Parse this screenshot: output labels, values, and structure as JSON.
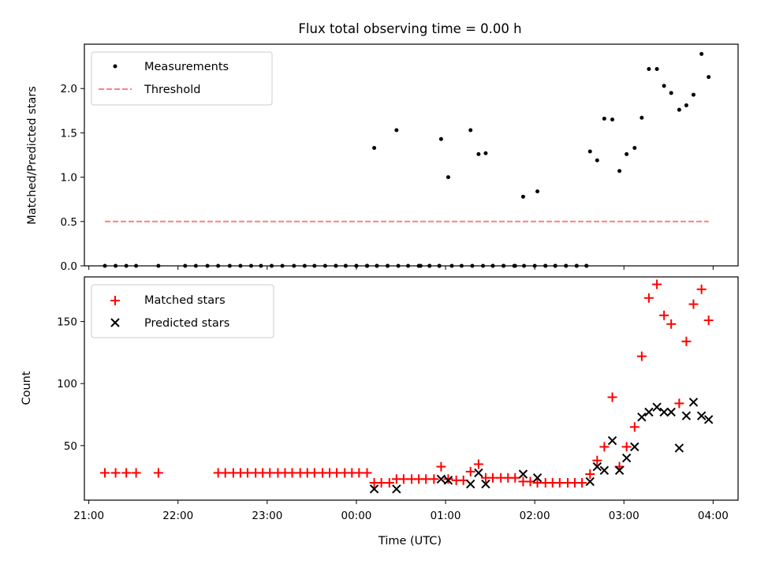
{
  "title": "Flux total observing time = 0.00 h",
  "colors": {
    "measurement": "#000000",
    "threshold": "#ff7f7f",
    "matched": "#ff0000",
    "predicted": "#000000",
    "axes": "#000000",
    "legend_border": "#cccccc"
  },
  "chart_data": [
    {
      "type": "scatter",
      "panel": "top",
      "title": "Flux total observing time = 0.00 h",
      "xlabel": "",
      "ylabel": "Matched/Predicted stars",
      "xlim": [
        20.95,
        4.28
      ],
      "ylim": [
        0.0,
        2.5
      ],
      "yticks": [
        0.0,
        0.5,
        1.0,
        1.5,
        2.0
      ],
      "ytick_labels": [
        "0.0",
        "0.5",
        "1.0",
        "1.5",
        "2.0"
      ],
      "legend_position": "upper left",
      "series": [
        {
          "name": "Measurements",
          "marker": "dot",
          "x": [
            "21:11",
            "21:18",
            "21:25",
            "21:32",
            "21:47",
            "22:27",
            "22:35",
            "22:42",
            "22:49",
            "22:56",
            "23:03",
            "23:10",
            "23:18",
            "23:25",
            "23:32",
            "23:39",
            "23:46",
            "23:53",
            "24:00",
            "24:07",
            "24:14",
            "24:21",
            "24:28",
            "24:35",
            "24:42",
            "24:49",
            "24:56",
            "25:04",
            "25:11",
            "25:18",
            "25:25",
            "25:32",
            "25:39",
            "25:46",
            "25:53",
            "26:00",
            "26:07",
            "26:14",
            "26:21",
            "26:28",
            "26:35"
          ],
          "x_hours": [
            21.18,
            21.3,
            21.42,
            21.53,
            21.78,
            22.45,
            22.58,
            22.7,
            22.82,
            22.93,
            23.05,
            23.17,
            23.3,
            23.42,
            23.53,
            23.65,
            23.77,
            23.88,
            24.0,
            24.12,
            24.23,
            24.35,
            24.47,
            24.58,
            24.7,
            24.82,
            24.93,
            25.07,
            25.18,
            25.3,
            25.42,
            25.53,
            25.65,
            25.77,
            25.88,
            26.0,
            26.12,
            26.23,
            26.35,
            26.47,
            26.58
          ],
          "zero_points_x_hours": [
            21.18,
            21.3,
            21.42,
            21.53,
            21.78,
            22.45,
            22.58,
            22.7,
            22.82,
            22.93,
            23.05,
            23.17,
            23.3,
            23.42,
            23.53,
            23.65,
            23.77,
            23.88,
            24.0,
            24.12,
            24.23,
            24.35,
            24.47,
            24.58,
            24.7,
            24.82,
            24.93,
            25.07,
            25.18,
            25.3,
            25.42,
            25.53,
            25.65,
            25.77,
            25.88,
            26.0,
            26.12,
            26.23,
            26.35,
            26.47,
            26.58,
            22.08,
            22.2,
            22.33,
            23.77,
            23.88,
            24.0,
            24.12,
            24.23,
            24.35,
            24.12,
            24.72,
            24.82,
            24.93,
            25.53,
            25.65,
            25.78,
            26.12,
            26.23,
            26.35,
            26.47,
            26.58
          ],
          "nonzero_points": [
            {
              "x_hours": 24.2,
              "y": 1.33
            },
            {
              "x_hours": 24.45,
              "y": 1.53
            },
            {
              "x_hours": 24.95,
              "y": 1.43
            },
            {
              "x_hours": 25.03,
              "y": 1.0
            },
            {
              "x_hours": 25.28,
              "y": 1.53
            },
            {
              "x_hours": 25.37,
              "y": 1.26
            },
            {
              "x_hours": 25.45,
              "y": 1.27
            },
            {
              "x_hours": 25.87,
              "y": 0.78
            },
            {
              "x_hours": 26.03,
              "y": 0.84
            },
            {
              "x_hours": 26.62,
              "y": 1.29
            },
            {
              "x_hours": 26.7,
              "y": 1.19
            },
            {
              "x_hours": 26.78,
              "y": 1.66
            },
            {
              "x_hours": 26.87,
              "y": 1.65
            },
            {
              "x_hours": 26.95,
              "y": 1.07
            },
            {
              "x_hours": 27.03,
              "y": 1.26
            },
            {
              "x_hours": 27.12,
              "y": 1.33
            },
            {
              "x_hours": 27.2,
              "y": 1.67
            },
            {
              "x_hours": 27.28,
              "y": 2.22
            },
            {
              "x_hours": 27.37,
              "y": 2.22
            },
            {
              "x_hours": 27.45,
              "y": 2.03
            },
            {
              "x_hours": 27.53,
              "y": 1.95
            },
            {
              "x_hours": 27.62,
              "y": 1.76
            },
            {
              "x_hours": 27.7,
              "y": 1.81
            },
            {
              "x_hours": 27.78,
              "y": 1.93
            },
            {
              "x_hours": 27.87,
              "y": 2.39
            },
            {
              "x_hours": 27.95,
              "y": 2.13
            }
          ]
        },
        {
          "name": "Threshold",
          "marker": "dashed-line",
          "x_hours": [
            21.18,
            27.95
          ],
          "y": [
            0.5,
            0.5
          ]
        }
      ]
    },
    {
      "type": "scatter",
      "panel": "bottom",
      "xlabel": "Time (UTC)",
      "ylabel": "Count",
      "xlim_hours": [
        20.95,
        28.28
      ],
      "ylim": [
        6,
        186
      ],
      "xticks_hours": [
        21,
        22,
        23,
        24,
        25,
        26,
        27,
        28
      ],
      "xtick_labels": [
        "21:00",
        "22:00",
        "23:00",
        "00:00",
        "01:00",
        "02:00",
        "03:00",
        "04:00"
      ],
      "yticks": [
        50,
        100,
        150
      ],
      "ytick_labels": [
        "50",
        "100",
        "150"
      ],
      "legend_position": "upper left",
      "series": [
        {
          "name": "Matched stars",
          "marker": "plus",
          "points": [
            [
              21.18,
              28
            ],
            [
              21.3,
              28
            ],
            [
              21.42,
              28
            ],
            [
              21.53,
              28
            ],
            [
              21.78,
              28
            ],
            [
              22.45,
              28
            ],
            [
              22.53,
              28
            ],
            [
              22.62,
              28
            ],
            [
              22.7,
              28
            ],
            [
              22.78,
              28
            ],
            [
              22.87,
              28
            ],
            [
              22.95,
              28
            ],
            [
              23.03,
              28
            ],
            [
              23.12,
              28
            ],
            [
              23.2,
              28
            ],
            [
              23.28,
              28
            ],
            [
              23.37,
              28
            ],
            [
              23.45,
              28
            ],
            [
              23.53,
              28
            ],
            [
              23.62,
              28
            ],
            [
              23.7,
              28
            ],
            [
              23.78,
              28
            ],
            [
              23.87,
              28
            ],
            [
              23.95,
              28
            ],
            [
              24.03,
              28
            ],
            [
              24.12,
              28
            ],
            [
              24.2,
              20
            ],
            [
              24.28,
              20
            ],
            [
              24.37,
              20
            ],
            [
              24.45,
              23
            ],
            [
              24.53,
              23
            ],
            [
              24.62,
              23
            ],
            [
              24.7,
              23
            ],
            [
              24.78,
              23
            ],
            [
              24.87,
              23
            ],
            [
              24.95,
              33
            ],
            [
              25.03,
              23
            ],
            [
              25.12,
              22
            ],
            [
              25.2,
              22
            ],
            [
              25.28,
              29
            ],
            [
              25.37,
              35
            ],
            [
              25.45,
              24
            ],
            [
              25.53,
              24
            ],
            [
              25.62,
              24
            ],
            [
              25.7,
              24
            ],
            [
              25.78,
              24
            ],
            [
              25.87,
              21
            ],
            [
              25.95,
              21
            ],
            [
              26.03,
              20
            ],
            [
              26.12,
              20
            ],
            [
              26.2,
              20
            ],
            [
              26.28,
              20
            ],
            [
              26.37,
              20
            ],
            [
              26.45,
              20
            ],
            [
              26.53,
              20
            ],
            [
              26.62,
              27
            ],
            [
              26.7,
              38
            ],
            [
              26.78,
              49
            ],
            [
              26.87,
              89
            ],
            [
              26.95,
              33
            ],
            [
              27.03,
              49
            ],
            [
              27.12,
              65
            ],
            [
              27.2,
              122
            ],
            [
              27.28,
              169
            ],
            [
              27.37,
              180
            ],
            [
              27.45,
              155
            ],
            [
              27.53,
              148
            ],
            [
              27.62,
              84
            ],
            [
              27.7,
              134
            ],
            [
              27.78,
              164
            ],
            [
              27.87,
              176
            ],
            [
              27.95,
              151
            ]
          ]
        },
        {
          "name": "Predicted stars",
          "marker": "x",
          "points": [
            [
              24.2,
              15
            ],
            [
              24.45,
              15
            ],
            [
              24.95,
              23
            ],
            [
              25.03,
              22
            ],
            [
              25.28,
              19
            ],
            [
              25.37,
              28
            ],
            [
              25.45,
              19
            ],
            [
              25.87,
              27
            ],
            [
              26.03,
              24
            ],
            [
              26.62,
              21
            ],
            [
              26.7,
              33
            ],
            [
              26.78,
              30
            ],
            [
              26.87,
              54
            ],
            [
              26.95,
              30
            ],
            [
              27.03,
              40
            ],
            [
              27.12,
              49
            ],
            [
              27.2,
              73
            ],
            [
              27.28,
              77
            ],
            [
              27.37,
              81
            ],
            [
              27.45,
              77
            ],
            [
              27.53,
              77
            ],
            [
              27.62,
              48
            ],
            [
              27.7,
              74
            ],
            [
              27.78,
              85
            ],
            [
              27.87,
              74
            ],
            [
              27.95,
              71
            ]
          ]
        }
      ]
    }
  ]
}
